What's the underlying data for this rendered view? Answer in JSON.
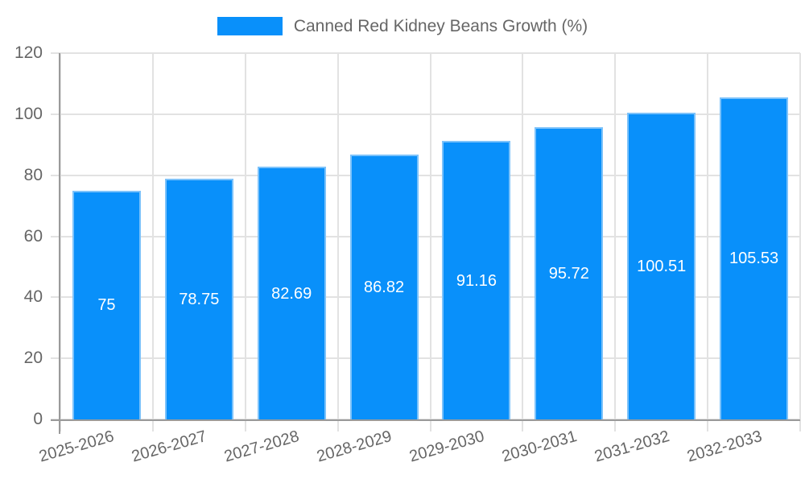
{
  "chart_data": {
    "type": "bar",
    "title": "",
    "xlabel": "",
    "ylabel": "",
    "categories": [
      "2025-2026",
      "2026-2027",
      "2027-2028",
      "2028-2029",
      "2029-2030",
      "2030-2031",
      "2031-2032",
      "2032-2033"
    ],
    "series": [
      {
        "name": "Canned Red Kidney Beans Growth (%)",
        "values": [
          75,
          78.75,
          82.69,
          86.82,
          91.16,
          95.72,
          100.51,
          105.53
        ]
      }
    ],
    "value_labels": [
      "75",
      "78.75",
      "82.69",
      "86.82",
      "91.16",
      "95.72",
      "100.51",
      "105.53"
    ],
    "ylim": [
      0,
      120
    ],
    "yticks": [
      0,
      20,
      40,
      60,
      80,
      100,
      120
    ],
    "grid": true,
    "legend": {
      "position": "top",
      "label": "Canned Red Kidney Beans Growth (%)"
    },
    "colors": {
      "bar_fill": "#0990fa",
      "bar_border": "#7cc2fa",
      "grid": "#e2e2e2",
      "axis": "#9a9a9a",
      "tick_text": "#666666",
      "value_label_text": "#ffffff"
    }
  }
}
